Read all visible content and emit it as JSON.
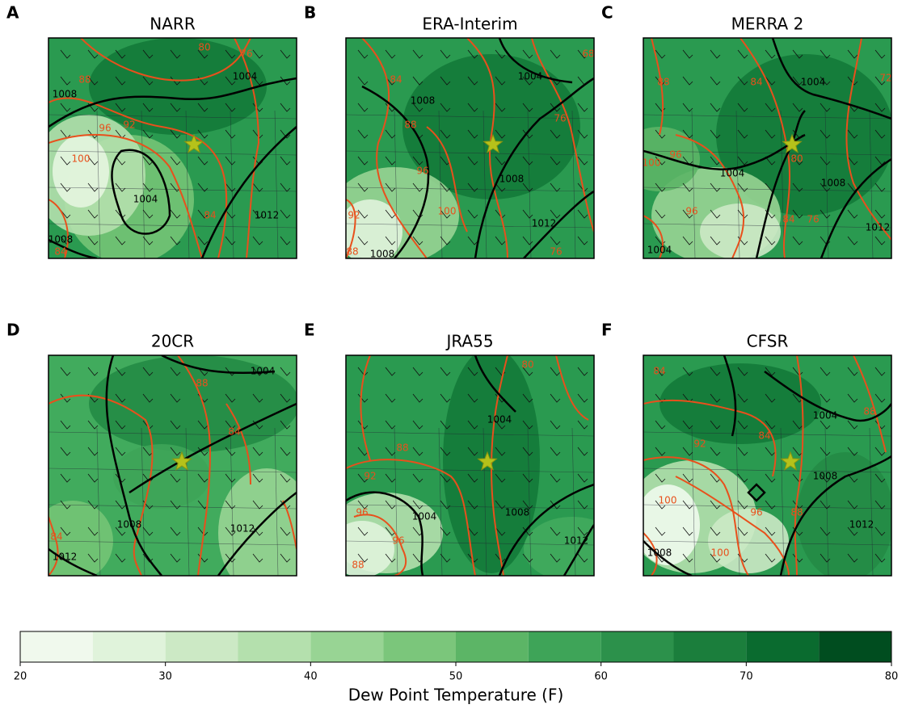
{
  "panels": [
    {
      "letter": "A",
      "title": "NARR",
      "contour_labels": [
        80,
        76,
        1004,
        88,
        1008,
        92,
        96,
        100,
        1004,
        84,
        1012,
        1008,
        84
      ]
    },
    {
      "letter": "B",
      "title": "ERA-Interim",
      "contour_labels": [
        68,
        84,
        1008,
        1004,
        88,
        76,
        96,
        1008,
        100,
        92,
        1012,
        76,
        1008,
        88
      ]
    },
    {
      "letter": "C",
      "title": "MERRA 2",
      "contour_labels": [
        88,
        84,
        1004,
        72,
        96,
        100,
        1004,
        80,
        1008,
        96,
        84,
        76,
        1012,
        1004
      ]
    },
    {
      "letter": "D",
      "title": "20CR",
      "contour_labels": [
        88,
        1004,
        84,
        1008,
        1012,
        84,
        1012
      ]
    },
    {
      "letter": "E",
      "title": "JRA55",
      "contour_labels": [
        80,
        1004,
        88,
        92,
        96,
        1004,
        96,
        1008,
        1012,
        88
      ]
    },
    {
      "letter": "F",
      "title": "CFSR",
      "contour_labels": [
        84,
        1004,
        88,
        92,
        84,
        1008,
        100,
        96,
        88,
        100,
        1012,
        1008
      ]
    }
  ],
  "colorbar": {
    "label": "Dew Point Temperature (F)",
    "lim": [
      20,
      80
    ],
    "bounds": [
      20,
      25,
      30,
      35,
      40,
      45,
      50,
      55,
      60,
      65,
      70,
      75,
      80
    ],
    "colors": [
      "#f0f9ed",
      "#e0f3db",
      "#cce9c5",
      "#b4e0ad",
      "#98d494",
      "#7bc67b",
      "#5cb566",
      "#3ea458",
      "#2c914b",
      "#1b7e3c",
      "#0a6b2f",
      "#004d1f"
    ],
    "ticks": [
      20,
      30,
      40,
      50,
      60,
      70,
      80
    ]
  }
}
